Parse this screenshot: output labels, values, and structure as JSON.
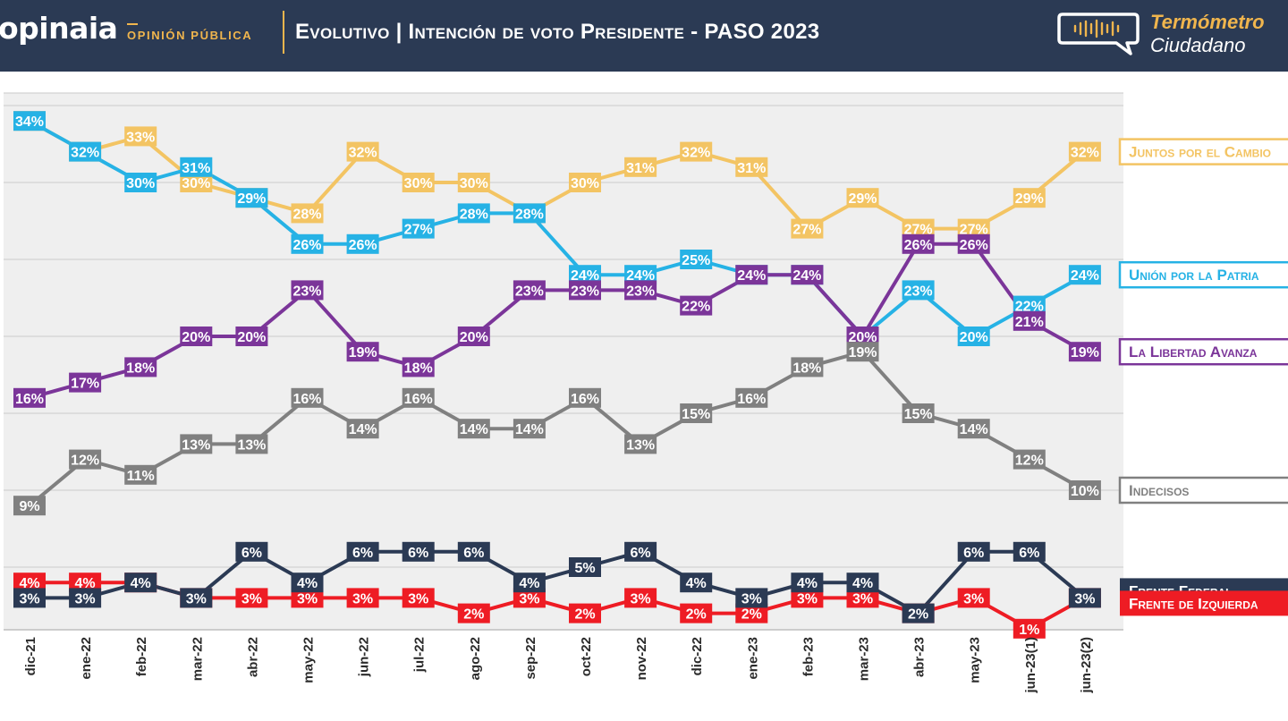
{
  "header": {
    "brand_name": "opinaia",
    "brand_sub": "OPINIÓN PÚBLICA",
    "title": "Evolutivo | Intención de voto Presidente - PASO 2023",
    "logo_line1": "Termómetro",
    "logo_line2": "Ciudadano",
    "logo_icon": "speech-bubble-soundwave-icon"
  },
  "colors": {
    "header_bg": "#2b3a54",
    "accent": "#f0b54d",
    "plot_bg": "#efefef",
    "grid": "#d2d2d2"
  },
  "chart_data": {
    "type": "line",
    "grid": true,
    "legend_position": "right",
    "ylim": [
      0,
      35
    ],
    "categories": [
      "dic-21",
      "ene-22",
      "feb-22",
      "mar-22",
      "abr-22",
      "may-22",
      "jun-22",
      "jul-22",
      "ago-22",
      "sep-22",
      "oct-22",
      "nov-22",
      "dic-22",
      "ene-23",
      "feb-23",
      "mar-23",
      "abr-23",
      "may-23",
      "jun-23(1)",
      "jun-23(2)"
    ],
    "series": [
      {
        "name": "Juntos por el Cambio",
        "color": "#f3c463",
        "label_text": "#ffffff",
        "values": [
          34,
          32,
          33,
          30,
          29,
          28,
          32,
          30,
          30,
          28,
          30,
          31,
          32,
          31,
          27,
          29,
          27,
          27,
          29,
          32
        ],
        "labels": [
          "34%",
          "32%",
          "33%",
          "30%",
          "29%",
          "28%",
          "32%",
          "30%",
          "30%",
          "28%",
          "30%",
          "31%",
          "32%",
          "31%",
          "27%",
          "29%",
          "27%",
          "27%",
          "29%",
          "32%"
        ]
      },
      {
        "name": "Unión por la Patria",
        "color": "#26b2e5",
        "label_text": "#ffffff",
        "values": [
          34,
          32,
          30,
          31,
          29,
          26,
          26,
          27,
          28,
          28,
          24,
          24,
          25,
          24,
          24,
          20,
          23,
          20,
          22,
          24
        ],
        "labels": [
          "34%",
          "32%",
          "30%",
          "31%",
          "29%",
          "26%",
          "26%",
          "27%",
          "28%",
          "28%",
          "24%",
          "24%",
          "25%",
          "24%",
          "24%",
          "20%",
          "23%",
          "20%",
          "22%",
          "24%"
        ]
      },
      {
        "name": "La Libertad Avanza",
        "color": "#7b3599",
        "label_text": "#ffffff",
        "values": [
          16,
          17,
          18,
          20,
          20,
          23,
          19,
          18,
          20,
          23,
          23,
          23,
          22,
          24,
          24,
          20,
          26,
          26,
          21,
          19
        ],
        "labels": [
          "16%",
          "17%",
          "18%",
          "20%",
          "20%",
          "23%",
          "19%",
          "18%",
          "20%",
          "23%",
          "23%",
          "23%",
          "22%",
          "24%",
          "24%",
          "20%",
          "26%",
          "26%",
          "21%",
          "19%"
        ]
      },
      {
        "name": "Indecisos",
        "color": "#808080",
        "label_text": "#ffffff",
        "values": [
          9,
          12,
          11,
          13,
          13,
          16,
          14,
          16,
          14,
          14,
          16,
          13,
          15,
          16,
          18,
          19,
          15,
          14,
          12,
          10
        ],
        "labels": [
          "9%",
          "12%",
          "11%",
          "13%",
          "13%",
          "16%",
          "14%",
          "16%",
          "14%",
          "14%",
          "16%",
          "13%",
          "15%",
          "16%",
          "18%",
          "19%",
          "15%",
          "14%",
          "12%",
          "10%"
        ]
      },
      {
        "name": "Frente de Izquierda",
        "color": "#ee1c24",
        "label_text": "#ffffff",
        "values": [
          4,
          4,
          4,
          3,
          3,
          3,
          3,
          3,
          2,
          3,
          2,
          3,
          2,
          2,
          3,
          3,
          2,
          3,
          1,
          3
        ],
        "labels": [
          "4%",
          "4%",
          "4%",
          "3%",
          "3%",
          "3%",
          "3%",
          "3%",
          "2%",
          "3%",
          "2%",
          "3%",
          "2%",
          "2%",
          "3%",
          "3%",
          "2%",
          "3%",
          "1%",
          "3%"
        ]
      },
      {
        "name": "Frente Federal",
        "color": "#2b3a54",
        "label_text": "#ffffff",
        "values": [
          3,
          3,
          4,
          3,
          6,
          4,
          6,
          6,
          6,
          4,
          5,
          6,
          4,
          3,
          4,
          4,
          2,
          6,
          6,
          3
        ],
        "labels": [
          "3%",
          "3%",
          "4%",
          "3%",
          "6%",
          "4%",
          "6%",
          "6%",
          "6%",
          "4%",
          "5%",
          "6%",
          "4%",
          "3%",
          "4%",
          "4%",
          "2%",
          "6%",
          "6%",
          "3%"
        ]
      }
    ],
    "legend": [
      {
        "label": "Juntos por el Cambio",
        "style": "outline",
        "color": "#f3c463"
      },
      {
        "label": "Unión por la Patria",
        "style": "outline",
        "color": "#26b2e5"
      },
      {
        "label": "La Libertad Avanza",
        "style": "outline",
        "color": "#7b3599"
      },
      {
        "label": "Indecisos",
        "style": "outline",
        "color": "#808080"
      },
      {
        "label": "Frente Federal",
        "style": "filled",
        "color": "#2b3a54"
      },
      {
        "label": "Frente de Izquierda",
        "style": "filled",
        "color": "#ee1c24"
      }
    ]
  }
}
